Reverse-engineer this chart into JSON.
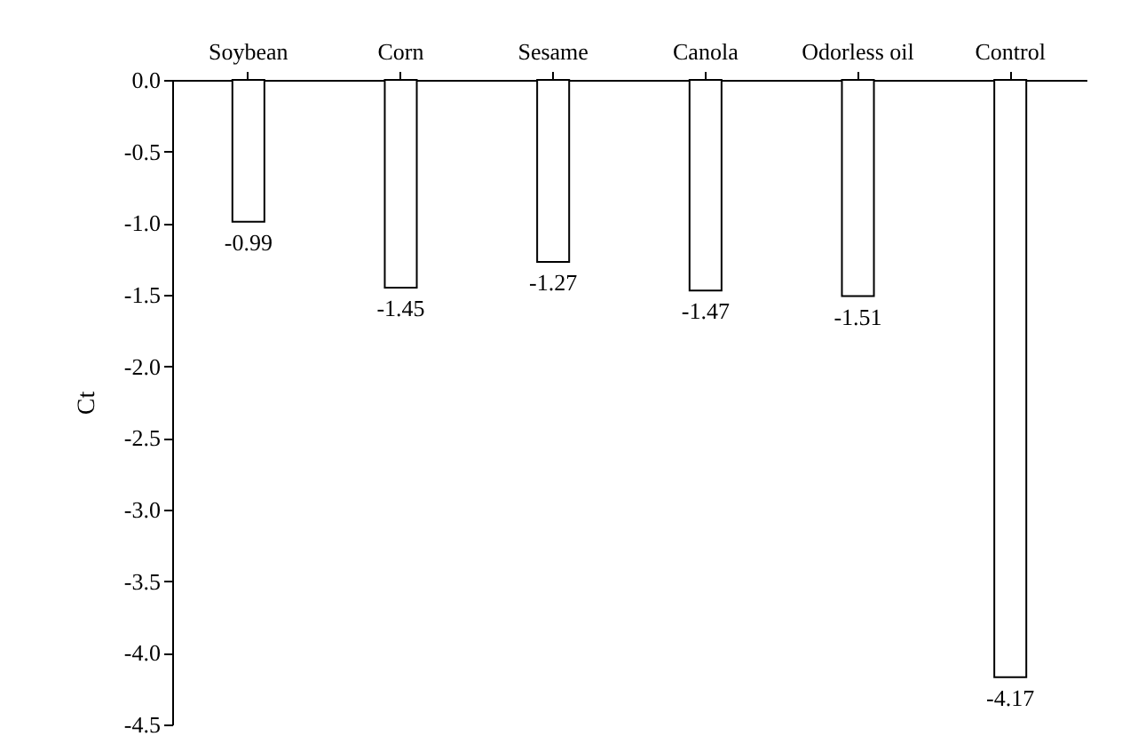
{
  "chart_data": {
    "type": "bar",
    "ylabel": "Ct",
    "categories": [
      "Soybean",
      "Corn",
      "Sesame",
      "Canola",
      "Odorless oil",
      "Control"
    ],
    "values": [
      -0.99,
      -1.45,
      -1.27,
      -1.47,
      -1.51,
      -4.17
    ],
    "color": "#ffffff",
    "ylim": [
      -4.5,
      0
    ],
    "yticks": [
      {
        "value": 0,
        "label": "0.0"
      },
      -0.5,
      {
        "value": -1,
        "label": "-1.0"
      },
      -1.5,
      {
        "value": -2,
        "label": "-2.0"
      },
      -2.5,
      {
        "value": -3,
        "label": "-3.0"
      },
      -3.5,
      {
        "value": -4,
        "label": "-4.0"
      },
      -4.5
    ],
    "data_labels": true,
    "grid": false
  }
}
